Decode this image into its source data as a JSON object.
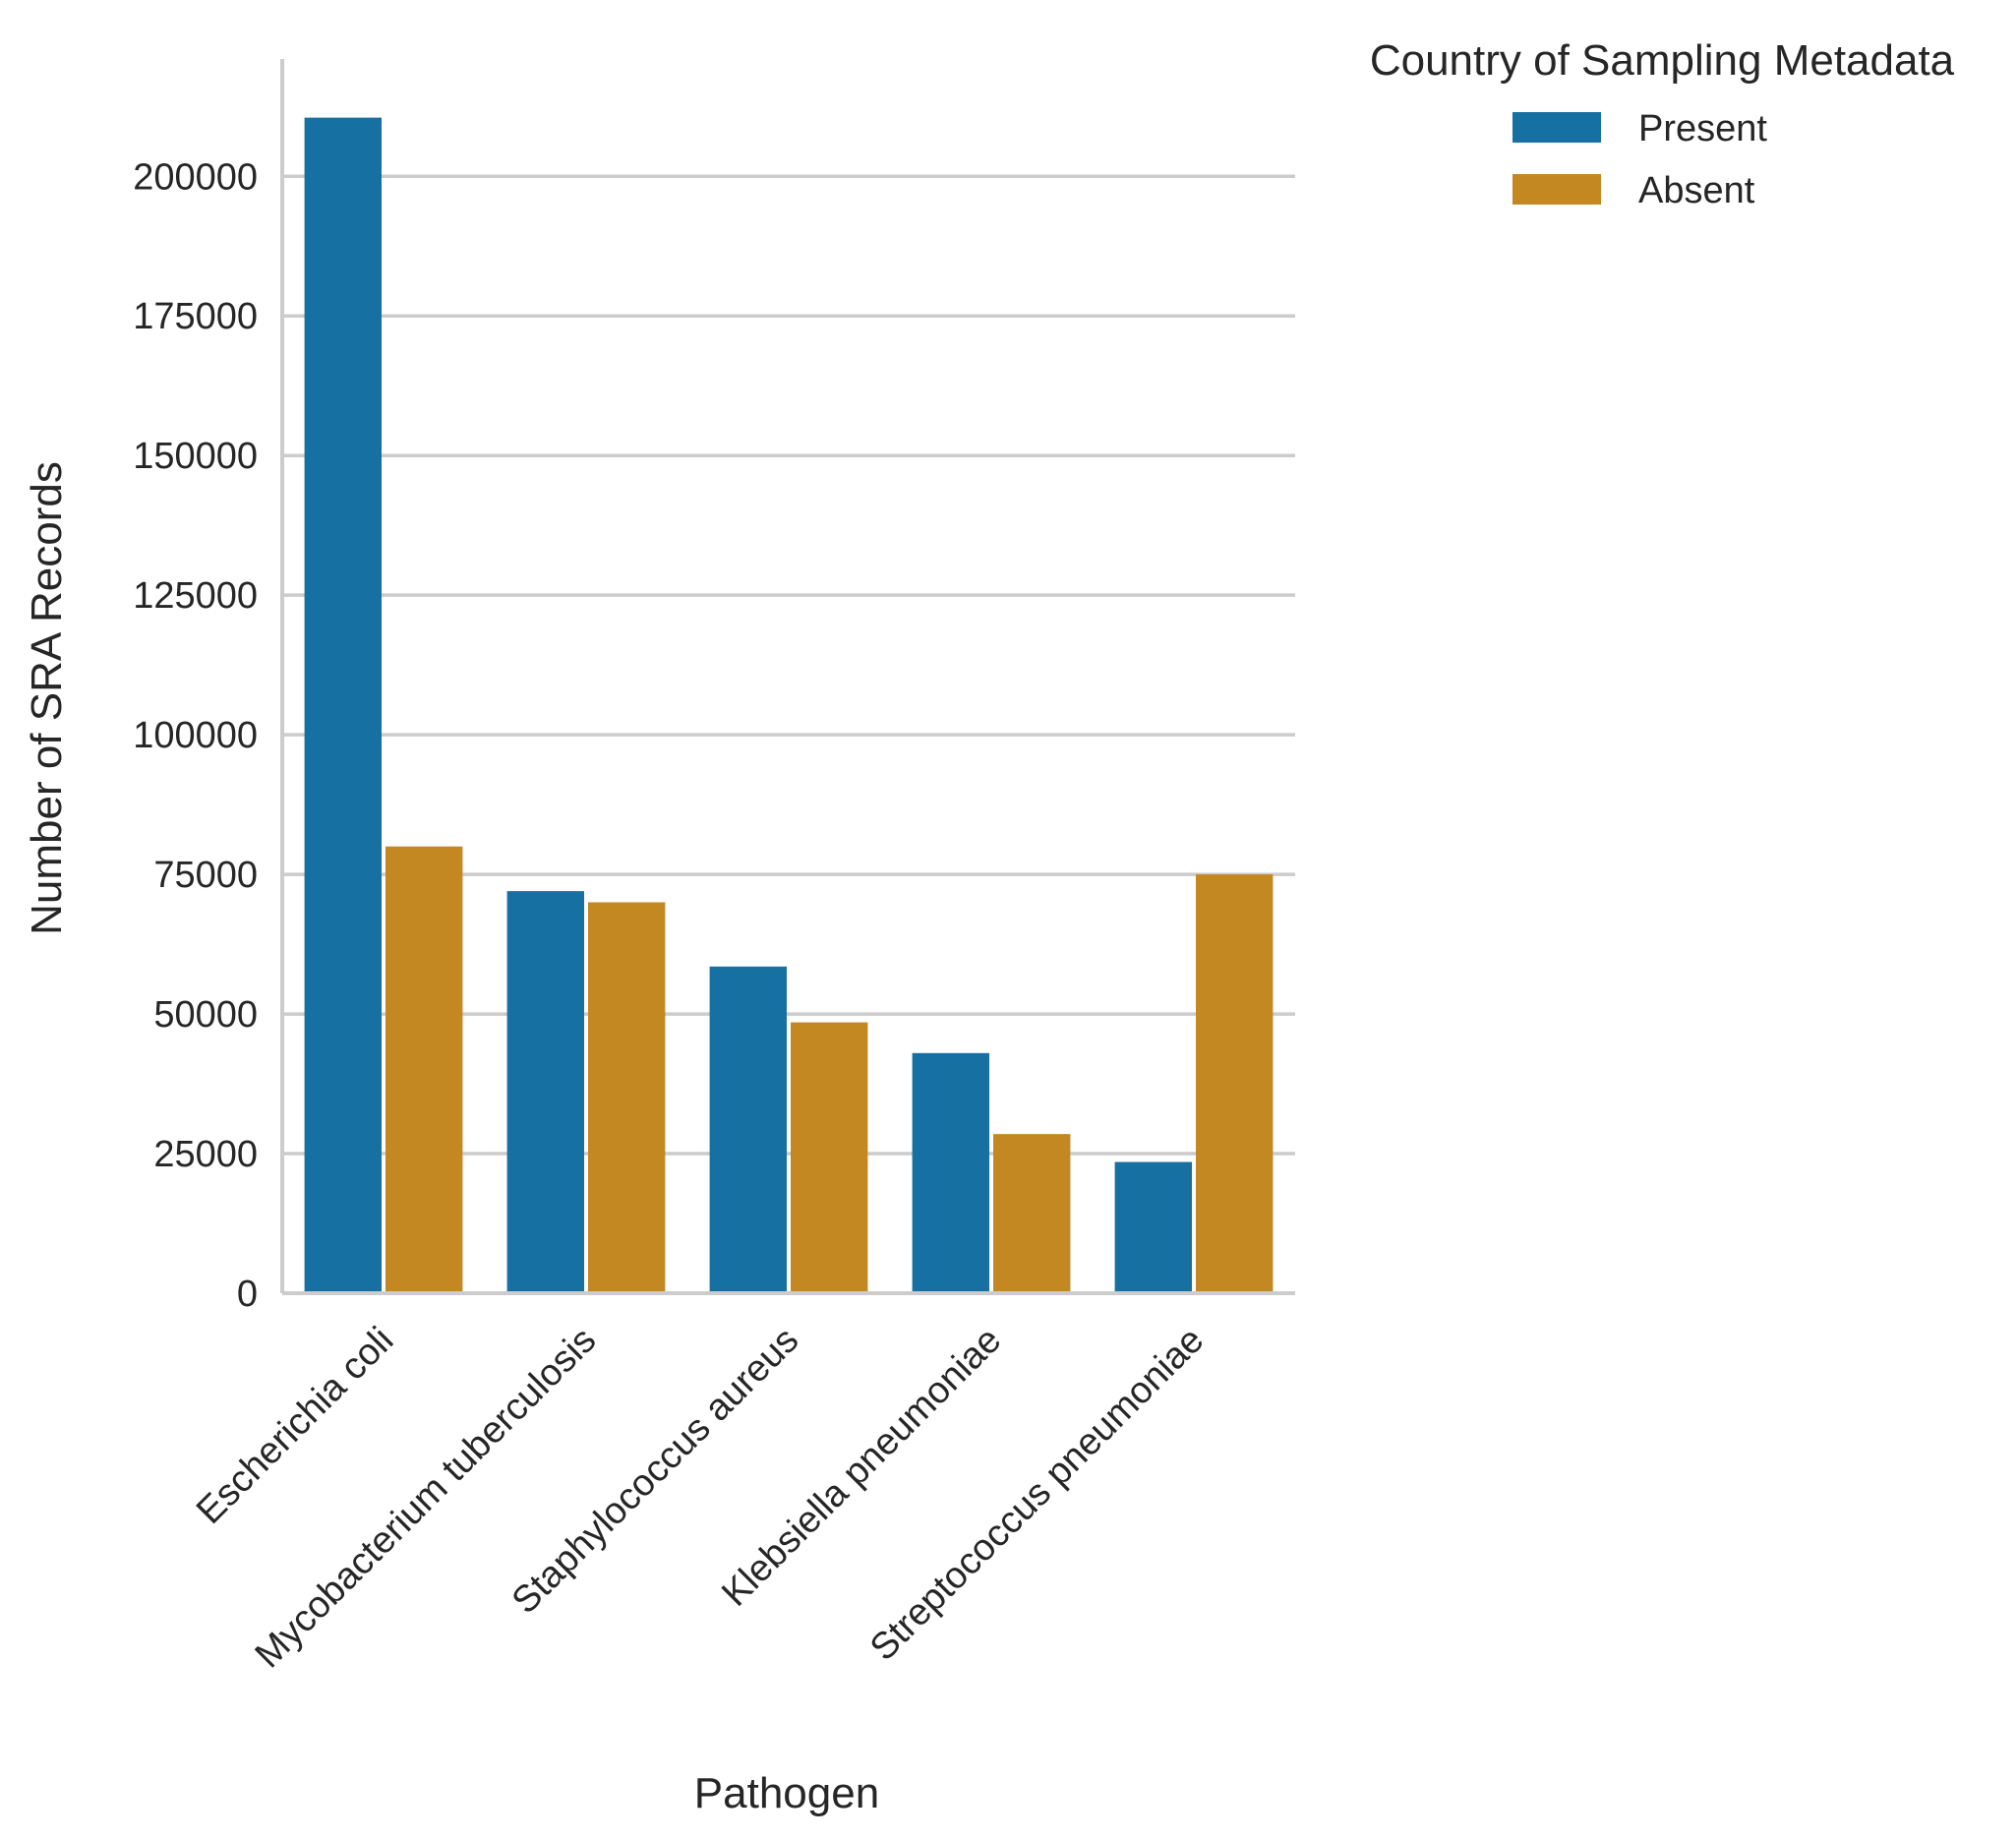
{
  "chart_data": {
    "type": "bar",
    "xlabel": "Pathogen",
    "ylabel": "Number of SRA Records",
    "categories": [
      "Escherichia coli",
      "Mycobacterium tuberculosis",
      "Staphylococcus aureus",
      "Klebsiella pneumoniae",
      "Streptococcus pneumoniae"
    ],
    "series": [
      {
        "name": "Present",
        "color": "#1770a2",
        "values": [
          210500,
          72000,
          58500,
          43000,
          23500
        ]
      },
      {
        "name": "Absent",
        "color": "#c38822",
        "values": [
          80000,
          70000,
          48500,
          28500,
          75000
        ]
      }
    ],
    "yticks": [
      0,
      25000,
      50000,
      75000,
      100000,
      125000,
      150000,
      175000,
      200000
    ],
    "ylim": [
      0,
      221000
    ],
    "grid": "horizontal",
    "legend": {
      "title": "Country of Sampling Metadata",
      "placement": "top-right, outside plot"
    },
    "colors": {
      "grid": "#cccccc",
      "axis": "#cccccc",
      "text": "#262626"
    }
  }
}
